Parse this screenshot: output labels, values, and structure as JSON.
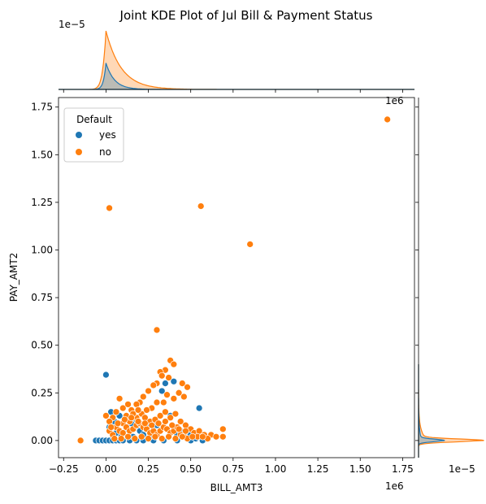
{
  "chart_data": {
    "type": "scatter",
    "title": "Joint KDE Plot of Jul Bill & Payment Status",
    "xlabel": "BILL_AMT3",
    "ylabel": "PAY_AMT2",
    "xlim": [
      -0.28,
      1.82
    ],
    "ylim": [
      -0.09,
      1.8
    ],
    "x_ticks": [
      -0.25,
      0.0,
      0.25,
      0.5,
      0.75,
      1.0,
      1.25,
      1.5,
      1.75
    ],
    "y_ticks": [
      0.0,
      0.25,
      0.5,
      0.75,
      1.0,
      1.25,
      1.5,
      1.75
    ],
    "x_tick_labels": [
      "−0.25",
      "0.00",
      "0.25",
      "0.50",
      "0.75",
      "1.00",
      "1.25",
      "1.50",
      "1.75"
    ],
    "y_tick_labels": [
      "0.00",
      "0.25",
      "0.50",
      "0.75",
      "1.00",
      "1.25",
      "1.50",
      "1.75"
    ],
    "x_offset_label": "1e6",
    "y_offset_label": "1e6",
    "top_marginal_offset_label": "1e−5",
    "right_marginal_offset_label": "1e−5",
    "legend": {
      "title": "Default",
      "placement": "top-left"
    },
    "series": [
      {
        "name": "yes",
        "color": "#1f77b4",
        "points": [
          [
            -0.06,
            0.0
          ],
          [
            -0.04,
            0.0
          ],
          [
            -0.02,
            0.0
          ],
          [
            0.0,
            0.0
          ],
          [
            0.02,
            0.0
          ],
          [
            0.04,
            0.0
          ],
          [
            0.06,
            0.0
          ],
          [
            0.08,
            0.0
          ],
          [
            0.1,
            0.0
          ],
          [
            0.14,
            0.0
          ],
          [
            0.18,
            0.0
          ],
          [
            0.22,
            0.0
          ],
          [
            0.28,
            0.0
          ],
          [
            0.34,
            0.0
          ],
          [
            0.42,
            0.0
          ],
          [
            0.5,
            0.0
          ],
          [
            0.57,
            0.0
          ],
          [
            0.0,
            0.345
          ],
          [
            0.02,
            0.07
          ],
          [
            0.03,
            0.15
          ],
          [
            0.05,
            0.1
          ],
          [
            0.08,
            0.13
          ],
          [
            0.1,
            0.03
          ],
          [
            0.12,
            0.06
          ],
          [
            0.15,
            0.09
          ],
          [
            0.18,
            0.11
          ],
          [
            0.2,
            0.05
          ],
          [
            0.22,
            0.03
          ],
          [
            0.25,
            0.08
          ],
          [
            0.3,
            0.08
          ],
          [
            0.33,
            0.26
          ],
          [
            0.35,
            0.3
          ],
          [
            0.38,
            0.13
          ],
          [
            0.4,
            0.31
          ],
          [
            0.42,
            0.03
          ],
          [
            0.44,
            0.05
          ],
          [
            0.47,
            0.02
          ],
          [
            0.5,
            0.03
          ],
          [
            0.53,
            0.01
          ],
          [
            0.55,
            0.17
          ],
          [
            0.06,
            0.04
          ],
          [
            0.09,
            0.02
          ],
          [
            0.16,
            0.02
          ],
          [
            0.26,
            0.02
          ]
        ]
      },
      {
        "name": "no",
        "color": "#ff7f0e",
        "points": [
          [
            1.66,
            1.685
          ],
          [
            0.56,
            1.23
          ],
          [
            0.02,
            1.22
          ],
          [
            0.85,
            1.03
          ],
          [
            0.3,
            0.58
          ],
          [
            -0.15,
            0.0
          ],
          [
            0.38,
            0.42
          ],
          [
            0.4,
            0.4
          ],
          [
            0.35,
            0.37
          ],
          [
            0.32,
            0.36
          ],
          [
            0.37,
            0.33
          ],
          [
            0.3,
            0.3
          ],
          [
            0.33,
            0.34
          ],
          [
            0.28,
            0.29
          ],
          [
            0.25,
            0.26
          ],
          [
            0.22,
            0.23
          ],
          [
            0.2,
            0.2
          ],
          [
            0.18,
            0.19
          ],
          [
            0.15,
            0.16
          ],
          [
            0.12,
            0.13
          ],
          [
            0.45,
            0.3
          ],
          [
            0.48,
            0.28
          ],
          [
            0.46,
            0.23
          ],
          [
            0.43,
            0.25
          ],
          [
            0.4,
            0.22
          ],
          [
            0.36,
            0.24
          ],
          [
            0.34,
            0.2
          ],
          [
            0.3,
            0.2
          ],
          [
            0.27,
            0.17
          ],
          [
            0.24,
            0.16
          ],
          [
            0.21,
            0.14
          ],
          [
            0.18,
            0.12
          ],
          [
            0.14,
            0.1
          ],
          [
            0.1,
            0.09
          ],
          [
            0.08,
            0.22
          ],
          [
            0.06,
            0.15
          ],
          [
            0.04,
            0.12
          ],
          [
            0.02,
            0.1
          ],
          [
            0.0,
            0.13
          ],
          [
            0.1,
            0.17
          ],
          [
            0.13,
            0.19
          ],
          [
            0.16,
            0.14
          ],
          [
            0.19,
            0.16
          ],
          [
            0.23,
            0.12
          ],
          [
            0.26,
            0.1
          ],
          [
            0.29,
            0.11
          ],
          [
            0.32,
            0.13
          ],
          [
            0.35,
            0.15
          ],
          [
            0.38,
            0.12
          ],
          [
            0.41,
            0.14
          ],
          [
            0.44,
            0.1
          ],
          [
            0.47,
            0.08
          ],
          [
            0.5,
            0.06
          ],
          [
            0.52,
            0.04
          ],
          [
            0.55,
            0.05
          ],
          [
            0.58,
            0.03
          ],
          [
            0.62,
            0.03
          ],
          [
            0.65,
            0.02
          ],
          [
            0.69,
            0.06
          ],
          [
            0.69,
            0.02
          ],
          [
            0.6,
            0.01
          ],
          [
            0.54,
            0.02
          ],
          [
            0.02,
            0.05
          ],
          [
            0.04,
            0.03
          ],
          [
            0.06,
            0.07
          ],
          [
            0.08,
            0.05
          ],
          [
            0.1,
            0.04
          ],
          [
            0.12,
            0.07
          ],
          [
            0.14,
            0.05
          ],
          [
            0.16,
            0.06
          ],
          [
            0.18,
            0.08
          ],
          [
            0.2,
            0.09
          ],
          [
            0.22,
            0.07
          ],
          [
            0.24,
            0.06
          ],
          [
            0.26,
            0.04
          ],
          [
            0.28,
            0.05
          ],
          [
            0.3,
            0.03
          ],
          [
            0.32,
            0.05
          ],
          [
            0.34,
            0.07
          ],
          [
            0.36,
            0.06
          ],
          [
            0.38,
            0.04
          ],
          [
            0.4,
            0.05
          ],
          [
            0.42,
            0.07
          ],
          [
            0.44,
            0.03
          ],
          [
            0.46,
            0.02
          ],
          [
            0.48,
            0.01
          ],
          [
            0.05,
            0.01
          ],
          [
            0.09,
            0.01
          ],
          [
            0.13,
            0.02
          ],
          [
            0.17,
            0.01
          ],
          [
            0.21,
            0.02
          ],
          [
            0.25,
            0.01
          ],
          [
            0.29,
            0.02
          ],
          [
            0.33,
            0.01
          ],
          [
            0.37,
            0.02
          ],
          [
            0.41,
            0.01
          ],
          [
            0.45,
            0.02
          ],
          [
            0.11,
            0.11
          ],
          [
            0.07,
            0.09
          ],
          [
            0.03,
            0.07
          ],
          [
            0.15,
            0.12
          ],
          [
            0.19,
            0.1
          ],
          [
            0.23,
            0.09
          ],
          [
            0.27,
            0.08
          ],
          [
            0.31,
            0.09
          ],
          [
            0.35,
            0.1
          ],
          [
            0.39,
            0.08
          ],
          [
            0.43,
            0.06
          ],
          [
            0.47,
            0.05
          ],
          [
            0.51,
            0.02
          ],
          [
            0.57,
            0.02
          ]
        ]
      }
    ],
    "marginal_x": {
      "yes": {
        "peak_value": 0.45,
        "peak_x": 0.0
      },
      "no": {
        "peak_value": 1.0,
        "peak_x": 0.0
      }
    },
    "marginal_y": {
      "yes": {
        "peak_value": 0.4,
        "peak_y": 0.0
      },
      "no": {
        "peak_value": 1.0,
        "peak_y": 0.0
      }
    }
  }
}
